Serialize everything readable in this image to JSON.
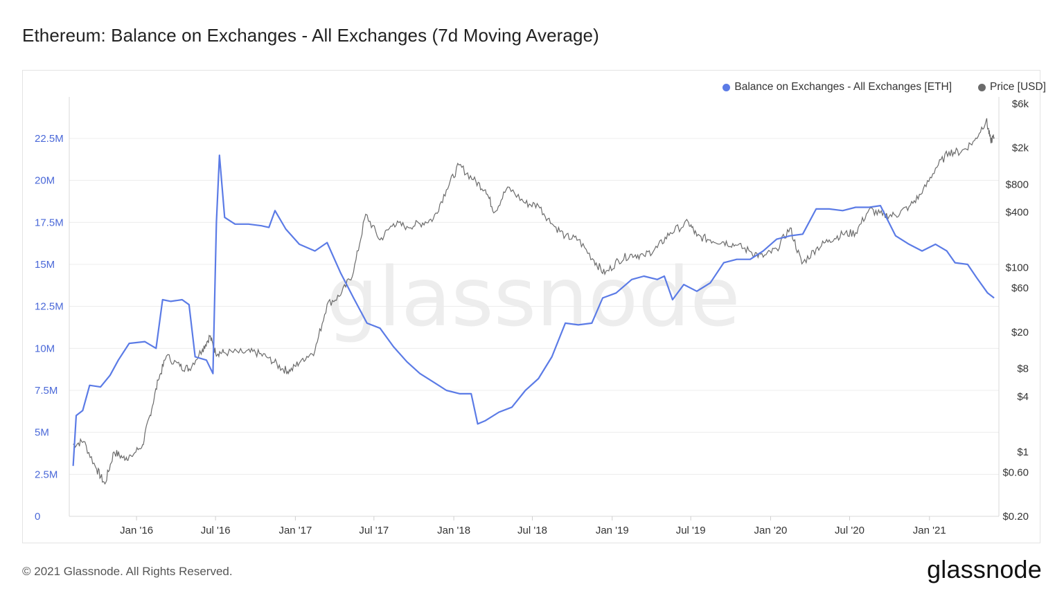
{
  "title": "Ethereum: Balance on Exchanges - All Exchanges (7d Moving Average)",
  "footer": "© 2021 Glassnode. All Rights Reserved.",
  "brand": "glassnode",
  "watermark": "glassnode",
  "colors": {
    "balance": "#5b7be6",
    "price": "#6b6b6b",
    "grid": "#ececec",
    "left_axis_text": "#4a68d8"
  },
  "chart_data": {
    "type": "line",
    "title": "Ethereum: Balance on Exchanges - All Exchanges (7d Moving Average)",
    "legend_position": "top-right",
    "grid": true,
    "x_ticks": [
      "Jan '16",
      "Jul '16",
      "Jan '17",
      "Jul '17",
      "Jan '18",
      "Jul '18",
      "Jan '19",
      "Jul '19",
      "Jan '20",
      "Jul '20",
      "Jan '21"
    ],
    "y_left": {
      "ticks": [
        "0",
        "2.5M",
        "5M",
        "7.5M",
        "10M",
        "12.5M",
        "15M",
        "17.5M",
        "20M",
        "22.5M"
      ],
      "range": [
        0,
        22500000
      ]
    },
    "y_right": {
      "scale": "log",
      "ticks": [
        "$0.20",
        "$0.60",
        "$1",
        "$4",
        "$8",
        "$20",
        "$60",
        "$100",
        "$400",
        "$800",
        "$2k",
        "$6k"
      ]
    },
    "series": [
      {
        "name": "Balance on Exchanges - All Exchanges [ETH]",
        "axis": "left",
        "color": "#5b7be6",
        "points": [
          [
            "2015-08-08",
            3000000
          ],
          [
            "2015-08-15",
            6000000
          ],
          [
            "2015-08-30",
            6300000
          ],
          [
            "2015-09-15",
            7800000
          ],
          [
            "2015-10-10",
            7700000
          ],
          [
            "2015-11-01",
            8400000
          ],
          [
            "2015-11-20",
            9300000
          ],
          [
            "2015-12-15",
            10300000
          ],
          [
            "2016-01-20",
            10400000
          ],
          [
            "2016-02-15",
            10000000
          ],
          [
            "2016-03-01",
            12900000
          ],
          [
            "2016-03-20",
            12800000
          ],
          [
            "2016-04-15",
            12900000
          ],
          [
            "2016-05-01",
            12600000
          ],
          [
            "2016-05-15",
            9500000
          ],
          [
            "2016-06-10",
            9300000
          ],
          [
            "2016-06-25",
            8500000
          ],
          [
            "2016-07-03",
            17500000
          ],
          [
            "2016-07-10",
            21500000
          ],
          [
            "2016-07-22",
            17800000
          ],
          [
            "2016-08-15",
            17400000
          ],
          [
            "2016-09-15",
            17400000
          ],
          [
            "2016-10-15",
            17300000
          ],
          [
            "2016-11-01",
            17200000
          ],
          [
            "2016-11-15",
            18200000
          ],
          [
            "2016-12-10",
            17100000
          ],
          [
            "2017-01-10",
            16200000
          ],
          [
            "2017-02-15",
            15800000
          ],
          [
            "2017-03-15",
            16300000
          ],
          [
            "2017-04-15",
            14500000
          ],
          [
            "2017-05-15",
            13000000
          ],
          [
            "2017-06-15",
            11500000
          ],
          [
            "2017-07-15",
            11200000
          ],
          [
            "2017-08-15",
            10100000
          ],
          [
            "2017-09-15",
            9200000
          ],
          [
            "2017-10-15",
            8500000
          ],
          [
            "2017-11-15",
            8000000
          ],
          [
            "2017-12-15",
            7500000
          ],
          [
            "2018-01-15",
            7300000
          ],
          [
            "2018-02-10",
            7300000
          ],
          [
            "2018-02-25",
            5500000
          ],
          [
            "2018-03-15",
            5700000
          ],
          [
            "2018-04-15",
            6200000
          ],
          [
            "2018-05-15",
            6500000
          ],
          [
            "2018-06-15",
            7500000
          ],
          [
            "2018-07-15",
            8200000
          ],
          [
            "2018-08-15",
            9500000
          ],
          [
            "2018-09-15",
            11500000
          ],
          [
            "2018-10-15",
            11400000
          ],
          [
            "2018-11-15",
            11500000
          ],
          [
            "2018-12-10",
            13000000
          ],
          [
            "2019-01-10",
            13300000
          ],
          [
            "2019-02-15",
            14100000
          ],
          [
            "2019-03-15",
            14300000
          ],
          [
            "2019-04-15",
            14100000
          ],
          [
            "2019-05-01",
            14300000
          ],
          [
            "2019-05-20",
            12900000
          ],
          [
            "2019-06-15",
            13800000
          ],
          [
            "2019-07-15",
            13400000
          ],
          [
            "2019-08-15",
            13900000
          ],
          [
            "2019-09-15",
            15100000
          ],
          [
            "2019-10-15",
            15300000
          ],
          [
            "2019-11-15",
            15300000
          ],
          [
            "2019-12-15",
            15800000
          ],
          [
            "2020-01-15",
            16500000
          ],
          [
            "2020-02-15",
            16700000
          ],
          [
            "2020-03-15",
            16800000
          ],
          [
            "2020-04-15",
            18300000
          ],
          [
            "2020-05-15",
            18300000
          ],
          [
            "2020-06-15",
            18200000
          ],
          [
            "2020-07-15",
            18400000
          ],
          [
            "2020-08-15",
            18400000
          ],
          [
            "2020-09-10",
            18500000
          ],
          [
            "2020-10-15",
            16700000
          ],
          [
            "2020-11-15",
            16200000
          ],
          [
            "2020-12-15",
            15800000
          ],
          [
            "2021-01-15",
            16200000
          ],
          [
            "2021-02-10",
            15800000
          ],
          [
            "2021-03-01",
            15100000
          ],
          [
            "2021-03-30",
            15000000
          ],
          [
            "2021-04-20",
            14200000
          ],
          [
            "2021-05-15",
            13300000
          ],
          [
            "2021-05-30",
            13000000
          ]
        ]
      },
      {
        "name": "Price [USD]",
        "axis": "right",
        "color": "#6b6b6b",
        "points": [
          [
            "2015-08-08",
            1.2
          ],
          [
            "2015-09-01",
            1.3
          ],
          [
            "2015-10-01",
            0.65
          ],
          [
            "2015-10-20",
            0.45
          ],
          [
            "2015-11-10",
            1.0
          ],
          [
            "2015-12-01",
            0.87
          ],
          [
            "2015-12-20",
            0.9
          ],
          [
            "2016-01-15",
            1.2
          ],
          [
            "2016-02-01",
            2.5
          ],
          [
            "2016-02-20",
            6.0
          ],
          [
            "2016-03-10",
            11.0
          ],
          [
            "2016-04-10",
            8.5
          ],
          [
            "2016-05-01",
            8.0
          ],
          [
            "2016-06-01",
            13.0
          ],
          [
            "2016-06-18",
            18.0
          ],
          [
            "2016-07-01",
            12.0
          ],
          [
            "2016-07-20",
            12.0
          ],
          [
            "2016-09-01",
            12.0
          ],
          [
            "2016-10-01",
            12.0
          ],
          [
            "2016-11-01",
            10.5
          ],
          [
            "2016-12-01",
            8.0
          ],
          [
            "2016-12-20",
            7.5
          ],
          [
            "2017-01-15",
            10.0
          ],
          [
            "2017-02-15",
            12.5
          ],
          [
            "2017-03-15",
            40.0
          ],
          [
            "2017-04-15",
            50.0
          ],
          [
            "2017-05-15",
            90.0
          ],
          [
            "2017-06-12",
            380.0
          ],
          [
            "2017-07-15",
            200.0
          ],
          [
            "2017-08-15",
            300.0
          ],
          [
            "2017-09-15",
            280.0
          ],
          [
            "2017-10-15",
            300.0
          ],
          [
            "2017-11-15",
            340.0
          ],
          [
            "2017-12-15",
            700.0
          ],
          [
            "2018-01-13",
            1300.0
          ],
          [
            "2018-02-15",
            900.0
          ],
          [
            "2018-03-15",
            700.0
          ],
          [
            "2018-04-05",
            400.0
          ],
          [
            "2018-05-05",
            750.0
          ],
          [
            "2018-06-15",
            500.0
          ],
          [
            "2018-07-15",
            470.0
          ],
          [
            "2018-08-15",
            300.0
          ],
          [
            "2018-09-15",
            220.0
          ],
          [
            "2018-10-15",
            200.0
          ],
          [
            "2018-11-20",
            120.0
          ],
          [
            "2018-12-15",
            85.0
          ],
          [
            "2019-01-15",
            120.0
          ],
          [
            "2019-02-15",
            140.0
          ],
          [
            "2019-03-15",
            135.0
          ],
          [
            "2019-04-15",
            165.0
          ],
          [
            "2019-05-15",
            240.0
          ],
          [
            "2019-06-26",
            310.0
          ],
          [
            "2019-07-15",
            220.0
          ],
          [
            "2019-08-15",
            200.0
          ],
          [
            "2019-09-15",
            190.0
          ],
          [
            "2019-10-15",
            175.0
          ],
          [
            "2019-11-15",
            150.0
          ],
          [
            "2019-12-15",
            130.0
          ],
          [
            "2020-01-15",
            160.0
          ],
          [
            "2020-02-15",
            270.0
          ],
          [
            "2020-03-13",
            110.0
          ],
          [
            "2020-04-15",
            160.0
          ],
          [
            "2020-05-15",
            200.0
          ],
          [
            "2020-06-15",
            230.0
          ],
          [
            "2020-07-15",
            240.0
          ],
          [
            "2020-08-15",
            430.0
          ],
          [
            "2020-09-15",
            370.0
          ],
          [
            "2020-10-15",
            370.0
          ],
          [
            "2020-11-15",
            460.0
          ],
          [
            "2020-12-15",
            640.0
          ],
          [
            "2021-01-15",
            1200.0
          ],
          [
            "2021-02-15",
            1800.0
          ],
          [
            "2021-03-15",
            1800.0
          ],
          [
            "2021-04-15",
            2400.0
          ],
          [
            "2021-05-12",
            4000.0
          ],
          [
            "2021-05-22",
            2400.0
          ],
          [
            "2021-05-30",
            2600.0
          ]
        ]
      }
    ]
  },
  "legend": {
    "series1": "Balance on Exchanges - All Exchanges [ETH]",
    "series2": "Price [USD]"
  }
}
